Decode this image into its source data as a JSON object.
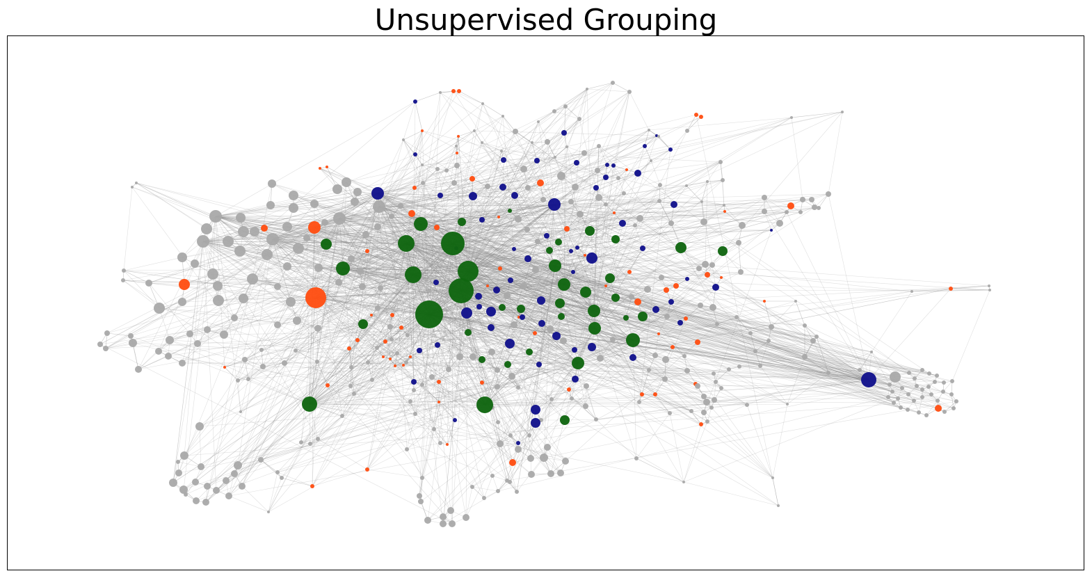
{
  "title": "Unsupervised Grouping",
  "colors": {
    "edge": "#8c8c8c",
    "node_default": "#a9a9a9",
    "group_green": "#116611",
    "group_navy": "#13138c",
    "group_orange": "#ff5014",
    "frame": "#000000"
  },
  "graph": {
    "type": "network",
    "layout": "force-directed",
    "groups": [
      "default",
      "green",
      "navy",
      "orange"
    ],
    "axes_ticks": false
  }
}
